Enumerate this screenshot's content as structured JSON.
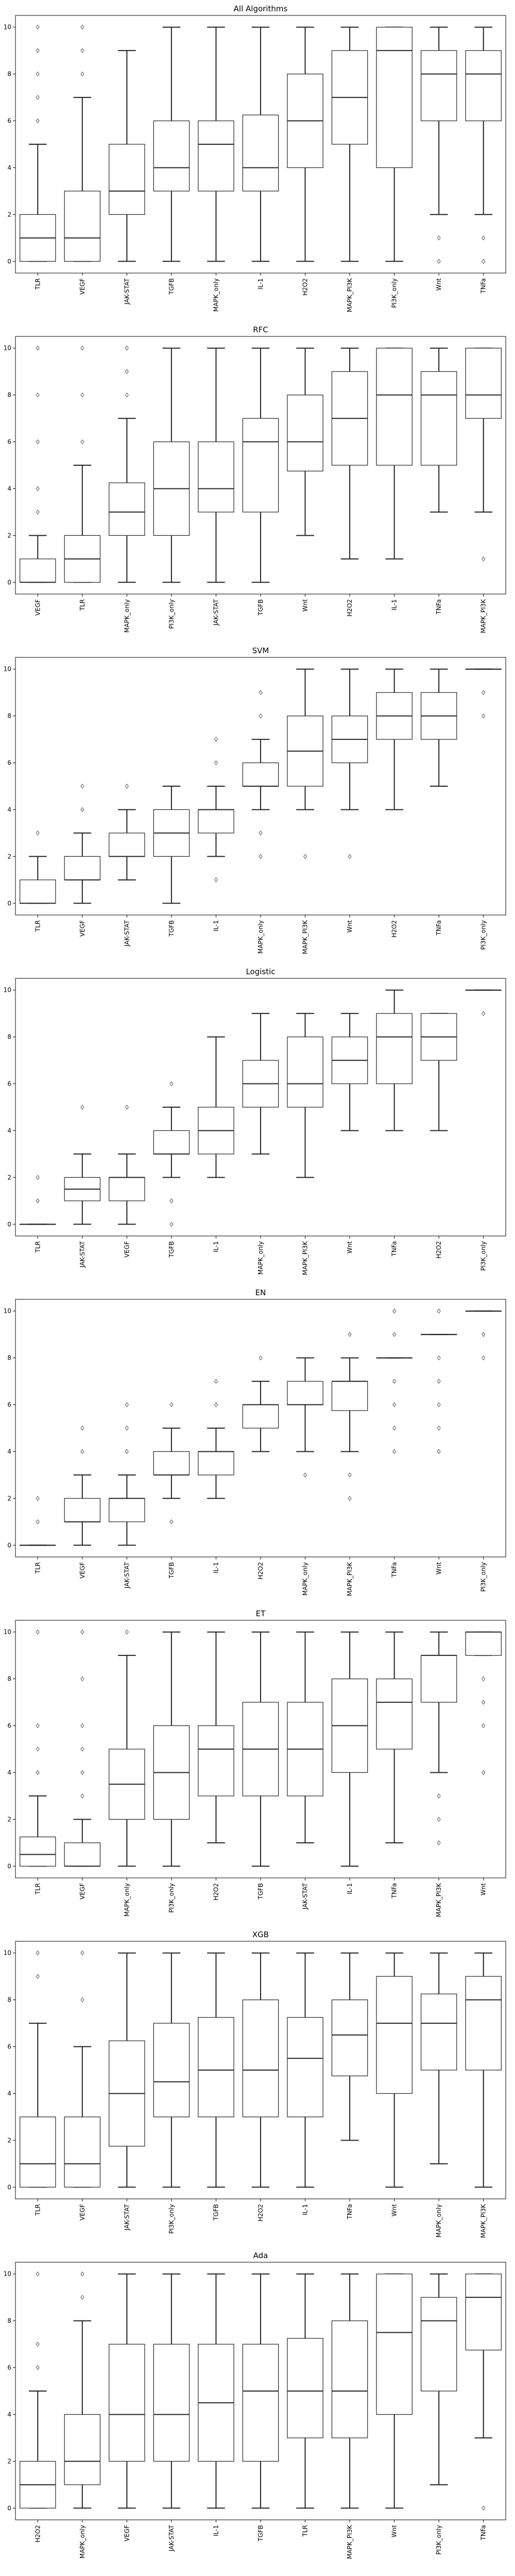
{
  "chart_data": [
    {
      "type": "box",
      "title": "All Algorithms",
      "ylim": [
        -0.5,
        10.5
      ],
      "yticks": [
        0,
        2,
        4,
        6,
        8,
        10
      ],
      "grid": false,
      "categories": [
        "TLR",
        "VEGF",
        "JAK-STAT",
        "TGFB",
        "MAPK_only",
        "IL-1",
        "H2O2",
        "MAPK_PI3K",
        "PI3K_only",
        "Wnt",
        "TNFa"
      ],
      "boxes": [
        {
          "min": 0,
          "q1": 0,
          "median": 1,
          "q3": 2,
          "max": 5,
          "outliers": [
            6,
            7,
            8,
            9,
            10
          ]
        },
        {
          "min": 0,
          "q1": 0,
          "median": 1,
          "q3": 3,
          "max": 7,
          "outliers": [
            8,
            9,
            10
          ]
        },
        {
          "min": 0,
          "q1": 2,
          "median": 3,
          "q3": 5,
          "max": 9,
          "outliers": []
        },
        {
          "min": 0,
          "q1": 3,
          "median": 4,
          "q3": 6,
          "max": 10,
          "outliers": []
        },
        {
          "min": 0,
          "q1": 3,
          "median": 5,
          "q3": 6,
          "max": 10,
          "outliers": []
        },
        {
          "min": 0,
          "q1": 3,
          "median": 4,
          "q3": 6.25,
          "max": 10,
          "outliers": []
        },
        {
          "min": 0,
          "q1": 4,
          "median": 6,
          "q3": 8,
          "max": 10,
          "outliers": []
        },
        {
          "min": 0,
          "q1": 5,
          "median": 7,
          "q3": 9,
          "max": 10,
          "outliers": []
        },
        {
          "min": 0,
          "q1": 4,
          "median": 9,
          "q3": 10,
          "max": 10,
          "outliers": []
        },
        {
          "min": 2,
          "q1": 6,
          "median": 8,
          "q3": 9,
          "max": 10,
          "outliers": [
            0,
            1
          ]
        },
        {
          "min": 2,
          "q1": 6,
          "median": 8,
          "q3": 9,
          "max": 10,
          "outliers": [
            0,
            1
          ]
        }
      ]
    },
    {
      "type": "box",
      "title": "RFC",
      "ylim": [
        -0.5,
        10.5
      ],
      "yticks": [
        0,
        2,
        4,
        6,
        8,
        10
      ],
      "grid": false,
      "categories": [
        "VEGF",
        "TLR",
        "MAPK_only",
        "PI3K_only",
        "JAK-STAT",
        "TGFB",
        "Wnt",
        "H2O2",
        "IL-1",
        "TNFa",
        "MAPK_PI3K"
      ],
      "boxes": [
        {
          "min": 0,
          "q1": 0,
          "median": 0,
          "q3": 1,
          "max": 2,
          "outliers": [
            3,
            4,
            6,
            8,
            10
          ]
        },
        {
          "min": 0,
          "q1": 0,
          "median": 1,
          "q3": 2,
          "max": 5,
          "outliers": [
            6,
            8,
            10
          ]
        },
        {
          "min": 0,
          "q1": 2,
          "median": 3,
          "q3": 4.25,
          "max": 7,
          "outliers": [
            8,
            9,
            10
          ]
        },
        {
          "min": 0,
          "q1": 2,
          "median": 4,
          "q3": 6,
          "max": 10,
          "outliers": []
        },
        {
          "min": 0,
          "q1": 3,
          "median": 4,
          "q3": 6,
          "max": 10,
          "outliers": []
        },
        {
          "min": 0,
          "q1": 3,
          "median": 6,
          "q3": 7,
          "max": 10,
          "outliers": []
        },
        {
          "min": 2,
          "q1": 4.75,
          "median": 6,
          "q3": 8,
          "max": 10,
          "outliers": []
        },
        {
          "min": 1,
          "q1": 5,
          "median": 7,
          "q3": 9,
          "max": 10,
          "outliers": []
        },
        {
          "min": 1,
          "q1": 5,
          "median": 8,
          "q3": 10,
          "max": 10,
          "outliers": []
        },
        {
          "min": 3,
          "q1": 5,
          "median": 8,
          "q3": 9,
          "max": 10,
          "outliers": []
        },
        {
          "min": 3,
          "q1": 7,
          "median": 8,
          "q3": 10,
          "max": 10,
          "outliers": [
            1
          ]
        }
      ]
    },
    {
      "type": "box",
      "title": "SVM",
      "ylim": [
        -0.5,
        10.5
      ],
      "yticks": [
        0,
        2,
        4,
        6,
        8,
        10
      ],
      "grid": false,
      "categories": [
        "TLR",
        "VEGF",
        "JAK-STAT",
        "TGFB",
        "IL-1",
        "MAPK_only",
        "MAPK_PI3K",
        "Wnt",
        "H2O2",
        "TNFa",
        "PI3K_only"
      ],
      "boxes": [
        {
          "min": 0,
          "q1": 0,
          "median": 0,
          "q3": 1,
          "max": 2,
          "outliers": [
            3
          ]
        },
        {
          "min": 0,
          "q1": 1,
          "median": 1,
          "q3": 2,
          "max": 3,
          "outliers": [
            4,
            5
          ]
        },
        {
          "min": 1,
          "q1": 2,
          "median": 2,
          "q3": 3,
          "max": 4,
          "outliers": [
            5
          ]
        },
        {
          "min": 0,
          "q1": 2,
          "median": 3,
          "q3": 4,
          "max": 5,
          "outliers": []
        },
        {
          "min": 2,
          "q1": 3,
          "median": 4,
          "q3": 4,
          "max": 5,
          "outliers": [
            1,
            6,
            7
          ]
        },
        {
          "min": 4,
          "q1": 5,
          "median": 5,
          "q3": 6,
          "max": 7,
          "outliers": [
            2,
            3,
            8,
            9
          ]
        },
        {
          "min": 4,
          "q1": 5,
          "median": 6.5,
          "q3": 8,
          "max": 10,
          "outliers": [
            2
          ]
        },
        {
          "min": 4,
          "q1": 6,
          "median": 7,
          "q3": 8,
          "max": 10,
          "outliers": [
            2
          ]
        },
        {
          "min": 4,
          "q1": 7,
          "median": 8,
          "q3": 9,
          "max": 10,
          "outliers": []
        },
        {
          "min": 5,
          "q1": 7,
          "median": 8,
          "q3": 9,
          "max": 10,
          "outliers": []
        },
        {
          "min": 10,
          "q1": 10,
          "median": 10,
          "q3": 10,
          "max": 10,
          "outliers": [
            8,
            9
          ]
        }
      ]
    },
    {
      "type": "box",
      "title": "Logistic",
      "ylim": [
        -0.5,
        10.5
      ],
      "yticks": [
        0,
        2,
        4,
        6,
        8,
        10
      ],
      "grid": false,
      "categories": [
        "TLR",
        "JAK-STAT",
        "VEGF",
        "TGFB",
        "IL-1",
        "MAPK_only",
        "MAPK_PI3K",
        "Wnt",
        "TNFa",
        "H2O2",
        "PI3K_only"
      ],
      "boxes": [
        {
          "min": 0,
          "q1": 0,
          "median": 0,
          "q3": 0,
          "max": 0,
          "outliers": [
            1,
            2
          ]
        },
        {
          "min": 0,
          "q1": 1,
          "median": 1.5,
          "q3": 2,
          "max": 3,
          "outliers": [
            5
          ]
        },
        {
          "min": 0,
          "q1": 1,
          "median": 2,
          "q3": 2,
          "max": 3,
          "outliers": [
            5
          ]
        },
        {
          "min": 2,
          "q1": 3,
          "median": 3,
          "q3": 4,
          "max": 5,
          "outliers": [
            0,
            1,
            6
          ]
        },
        {
          "min": 2,
          "q1": 3,
          "median": 4,
          "q3": 5,
          "max": 8,
          "outliers": []
        },
        {
          "min": 3,
          "q1": 5,
          "median": 6,
          "q3": 7,
          "max": 9,
          "outliers": []
        },
        {
          "min": 2,
          "q1": 5,
          "median": 6,
          "q3": 8,
          "max": 9,
          "outliers": []
        },
        {
          "min": 4,
          "q1": 6,
          "median": 7,
          "q3": 8,
          "max": 9,
          "outliers": []
        },
        {
          "min": 4,
          "q1": 6,
          "median": 8,
          "q3": 9,
          "max": 10,
          "outliers": []
        },
        {
          "min": 4,
          "q1": 7,
          "median": 8,
          "q3": 9,
          "max": 9,
          "outliers": []
        },
        {
          "min": 10,
          "q1": 10,
          "median": 10,
          "q3": 10,
          "max": 10,
          "outliers": [
            9
          ]
        }
      ]
    },
    {
      "type": "box",
      "title": "EN",
      "ylim": [
        -0.5,
        10.5
      ],
      "yticks": [
        0,
        2,
        4,
        6,
        8,
        10
      ],
      "grid": false,
      "categories": [
        "TLR",
        "VEGF",
        "JAK-STAT",
        "TGFB",
        "IL-1",
        "H2O2",
        "MAPK_only",
        "MAPK_PI3K",
        "TNFa",
        "Wnt",
        "PI3K_only"
      ],
      "boxes": [
        {
          "min": 0,
          "q1": 0,
          "median": 0,
          "q3": 0,
          "max": 0,
          "outliers": [
            1,
            2
          ]
        },
        {
          "min": 0,
          "q1": 1,
          "median": 1,
          "q3": 2,
          "max": 3,
          "outliers": [
            4,
            5
          ]
        },
        {
          "min": 0,
          "q1": 1,
          "median": 2,
          "q3": 2,
          "max": 3,
          "outliers": [
            4,
            5,
            6
          ]
        },
        {
          "min": 2,
          "q1": 3,
          "median": 3,
          "q3": 4,
          "max": 5,
          "outliers": [
            1,
            6
          ]
        },
        {
          "min": 2,
          "q1": 3,
          "median": 4,
          "q3": 4,
          "max": 5,
          "outliers": [
            6,
            7
          ]
        },
        {
          "min": 4,
          "q1": 5,
          "median": 6,
          "q3": 6,
          "max": 7,
          "outliers": [
            8
          ]
        },
        {
          "min": 4,
          "q1": 6,
          "median": 6,
          "q3": 7,
          "max": 8,
          "outliers": [
            3
          ]
        },
        {
          "min": 4,
          "q1": 5.75,
          "median": 7,
          "q3": 7,
          "max": 8,
          "outliers": [
            2,
            3,
            9
          ]
        },
        {
          "min": 8,
          "q1": 8,
          "median": 8,
          "q3": 8,
          "max": 8,
          "outliers": [
            4,
            5,
            6,
            7,
            9,
            10
          ]
        },
        {
          "min": 9,
          "q1": 9,
          "median": 9,
          "q3": 9,
          "max": 9,
          "outliers": [
            4,
            5,
            6,
            7,
            8,
            10
          ]
        },
        {
          "min": 10,
          "q1": 10,
          "median": 10,
          "q3": 10,
          "max": 10,
          "outliers": [
            8,
            9
          ]
        }
      ]
    },
    {
      "type": "box",
      "title": "ET",
      "ylim": [
        -0.5,
        10.5
      ],
      "yticks": [
        0,
        2,
        4,
        6,
        8,
        10
      ],
      "grid": false,
      "categories": [
        "TLR",
        "VEGF",
        "MAPK_only",
        "PI3K_only",
        "H2O2",
        "TGFB",
        "JAK-STAT",
        "IL-1",
        "TNFa",
        "MAPK_PI3K",
        "Wnt"
      ],
      "boxes": [
        {
          "min": 0,
          "q1": 0,
          "median": 0.5,
          "q3": 1.25,
          "max": 3,
          "outliers": [
            4,
            5,
            6,
            10
          ]
        },
        {
          "min": 0,
          "q1": 0,
          "median": 0,
          "q3": 1,
          "max": 2,
          "outliers": [
            3,
            4,
            5,
            6,
            8,
            10
          ]
        },
        {
          "min": 0,
          "q1": 2,
          "median": 3.5,
          "q3": 5,
          "max": 9,
          "outliers": [
            10
          ]
        },
        {
          "min": 0,
          "q1": 2,
          "median": 4,
          "q3": 6,
          "max": 10,
          "outliers": []
        },
        {
          "min": 1,
          "q1": 3,
          "median": 5,
          "q3": 6,
          "max": 10,
          "outliers": []
        },
        {
          "min": 0,
          "q1": 3,
          "median": 5,
          "q3": 7,
          "max": 10,
          "outliers": []
        },
        {
          "min": 1,
          "q1": 3,
          "median": 5,
          "q3": 7,
          "max": 10,
          "outliers": []
        },
        {
          "min": 0,
          "q1": 4,
          "median": 6,
          "q3": 8,
          "max": 10,
          "outliers": []
        },
        {
          "min": 1,
          "q1": 5,
          "median": 7,
          "q3": 8,
          "max": 10,
          "outliers": []
        },
        {
          "min": 4,
          "q1": 7,
          "median": 9,
          "q3": 9,
          "max": 10,
          "outliers": [
            1,
            2,
            3
          ]
        },
        {
          "min": 9,
          "q1": 9,
          "median": 10,
          "q3": 10,
          "max": 10,
          "outliers": [
            4,
            6,
            7,
            8
          ]
        }
      ]
    },
    {
      "type": "box",
      "title": "XGB",
      "ylim": [
        -0.5,
        10.5
      ],
      "yticks": [
        0,
        2,
        4,
        6,
        8,
        10
      ],
      "grid": false,
      "categories": [
        "TLR",
        "VEGF",
        "JAK-STAT",
        "PI3K_only",
        "TGFB",
        "H2O2",
        "IL-1",
        "TNFa",
        "Wnt",
        "MAPK_only",
        "MAPK_PI3K"
      ],
      "boxes": [
        {
          "min": 0,
          "q1": 0,
          "median": 1,
          "q3": 3,
          "max": 7,
          "outliers": [
            9,
            10
          ]
        },
        {
          "min": 0,
          "q1": 0,
          "median": 1,
          "q3": 3,
          "max": 6,
          "outliers": [
            8,
            10
          ]
        },
        {
          "min": 0,
          "q1": 1.75,
          "median": 4,
          "q3": 6.25,
          "max": 10,
          "outliers": []
        },
        {
          "min": 0,
          "q1": 3,
          "median": 4.5,
          "q3": 7,
          "max": 10,
          "outliers": []
        },
        {
          "min": 0,
          "q1": 3,
          "median": 5,
          "q3": 7.25,
          "max": 10,
          "outliers": []
        },
        {
          "min": 0,
          "q1": 3,
          "median": 5,
          "q3": 8,
          "max": 10,
          "outliers": []
        },
        {
          "min": 0,
          "q1": 3,
          "median": 5.5,
          "q3": 7.25,
          "max": 10,
          "outliers": []
        },
        {
          "min": 2,
          "q1": 4.75,
          "median": 6.5,
          "q3": 8,
          "max": 10,
          "outliers": []
        },
        {
          "min": 0,
          "q1": 4,
          "median": 7,
          "q3": 9,
          "max": 10,
          "outliers": []
        },
        {
          "min": 1,
          "q1": 5,
          "median": 7,
          "q3": 8.25,
          "max": 10,
          "outliers": []
        },
        {
          "min": 0,
          "q1": 5,
          "median": 8,
          "q3": 9,
          "max": 10,
          "outliers": []
        }
      ]
    },
    {
      "type": "box",
      "title": "Ada",
      "ylim": [
        -0.5,
        10.5
      ],
      "yticks": [
        0,
        2,
        4,
        6,
        8,
        10
      ],
      "grid": false,
      "categories": [
        "H2O2",
        "MAPK_only",
        "VEGF",
        "JAK-STAT",
        "IL-1",
        "TGFB",
        "TLR",
        "MAPK_PI3K",
        "Wnt",
        "PI3K_only",
        "TNFa"
      ],
      "boxes": [
        {
          "min": 0,
          "q1": 0,
          "median": 1,
          "q3": 2,
          "max": 5,
          "outliers": [
            6,
            7,
            10
          ]
        },
        {
          "min": 0,
          "q1": 1,
          "median": 2,
          "q3": 4,
          "max": 8,
          "outliers": [
            9,
            10
          ]
        },
        {
          "min": 0,
          "q1": 2,
          "median": 4,
          "q3": 7,
          "max": 10,
          "outliers": []
        },
        {
          "min": 0,
          "q1": 2,
          "median": 4,
          "q3": 7,
          "max": 10,
          "outliers": []
        },
        {
          "min": 0,
          "q1": 2,
          "median": 4.5,
          "q3": 7,
          "max": 10,
          "outliers": []
        },
        {
          "min": 0,
          "q1": 2,
          "median": 5,
          "q3": 7,
          "max": 10,
          "outliers": []
        },
        {
          "min": 0,
          "q1": 3,
          "median": 5,
          "q3": 7.25,
          "max": 10,
          "outliers": []
        },
        {
          "min": 0,
          "q1": 3,
          "median": 5,
          "q3": 8,
          "max": 10,
          "outliers": []
        },
        {
          "min": 0,
          "q1": 4,
          "median": 7.5,
          "q3": 10,
          "max": 10,
          "outliers": []
        },
        {
          "min": 1,
          "q1": 5,
          "median": 8,
          "q3": 9,
          "max": 10,
          "outliers": []
        },
        {
          "min": 3,
          "q1": 6.75,
          "median": 9,
          "q3": 10,
          "max": 10,
          "outliers": [
            0
          ]
        }
      ]
    }
  ]
}
